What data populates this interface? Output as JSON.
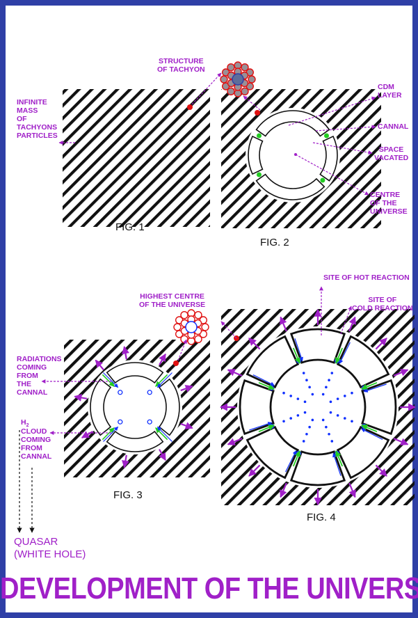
{
  "title": "DEVELOPMENT OF THE UNIVERSE",
  "colors": {
    "border": "#2f3fa6",
    "label": "#a020c8",
    "red": "#e01010",
    "green": "#22cc22",
    "blue": "#1030ff"
  },
  "fig1": {
    "caption": "FIG. 1",
    "label_mass": "INFINITE\nMASS\nOF\nTACHYONS\nPARTICLES"
  },
  "fig2": {
    "caption": "FIG. 2",
    "label_structure": "STRUCTURE\nOF TACHYON",
    "label_cdm": "CDM\nLAYER",
    "label_cannal": "CANNAL",
    "label_space": "SPACE\nVACATED",
    "label_centre": "CENTRE\nOF THE\nUNIVERSE"
  },
  "fig3": {
    "caption": "FIG. 3",
    "label_highest": "HIGHEST CENTRE\nOF THE UNIVERSE",
    "label_radiations": "RADIATIONS\nCOMING\nFROM\nTHE\nCANNAL",
    "label_h2_main": "H",
    "label_h2_sub": "2",
    "label_cloud": "CLOUD\nCOMING\nFROM\nCANNAL"
  },
  "fig4": {
    "caption": "FIG. 4",
    "label_hot": "SITE OF HOT REACTION",
    "label_cold": "SITE OF\nCOLD REACTION"
  },
  "quasar": "QUASAR\n(WHITE HOLE)"
}
